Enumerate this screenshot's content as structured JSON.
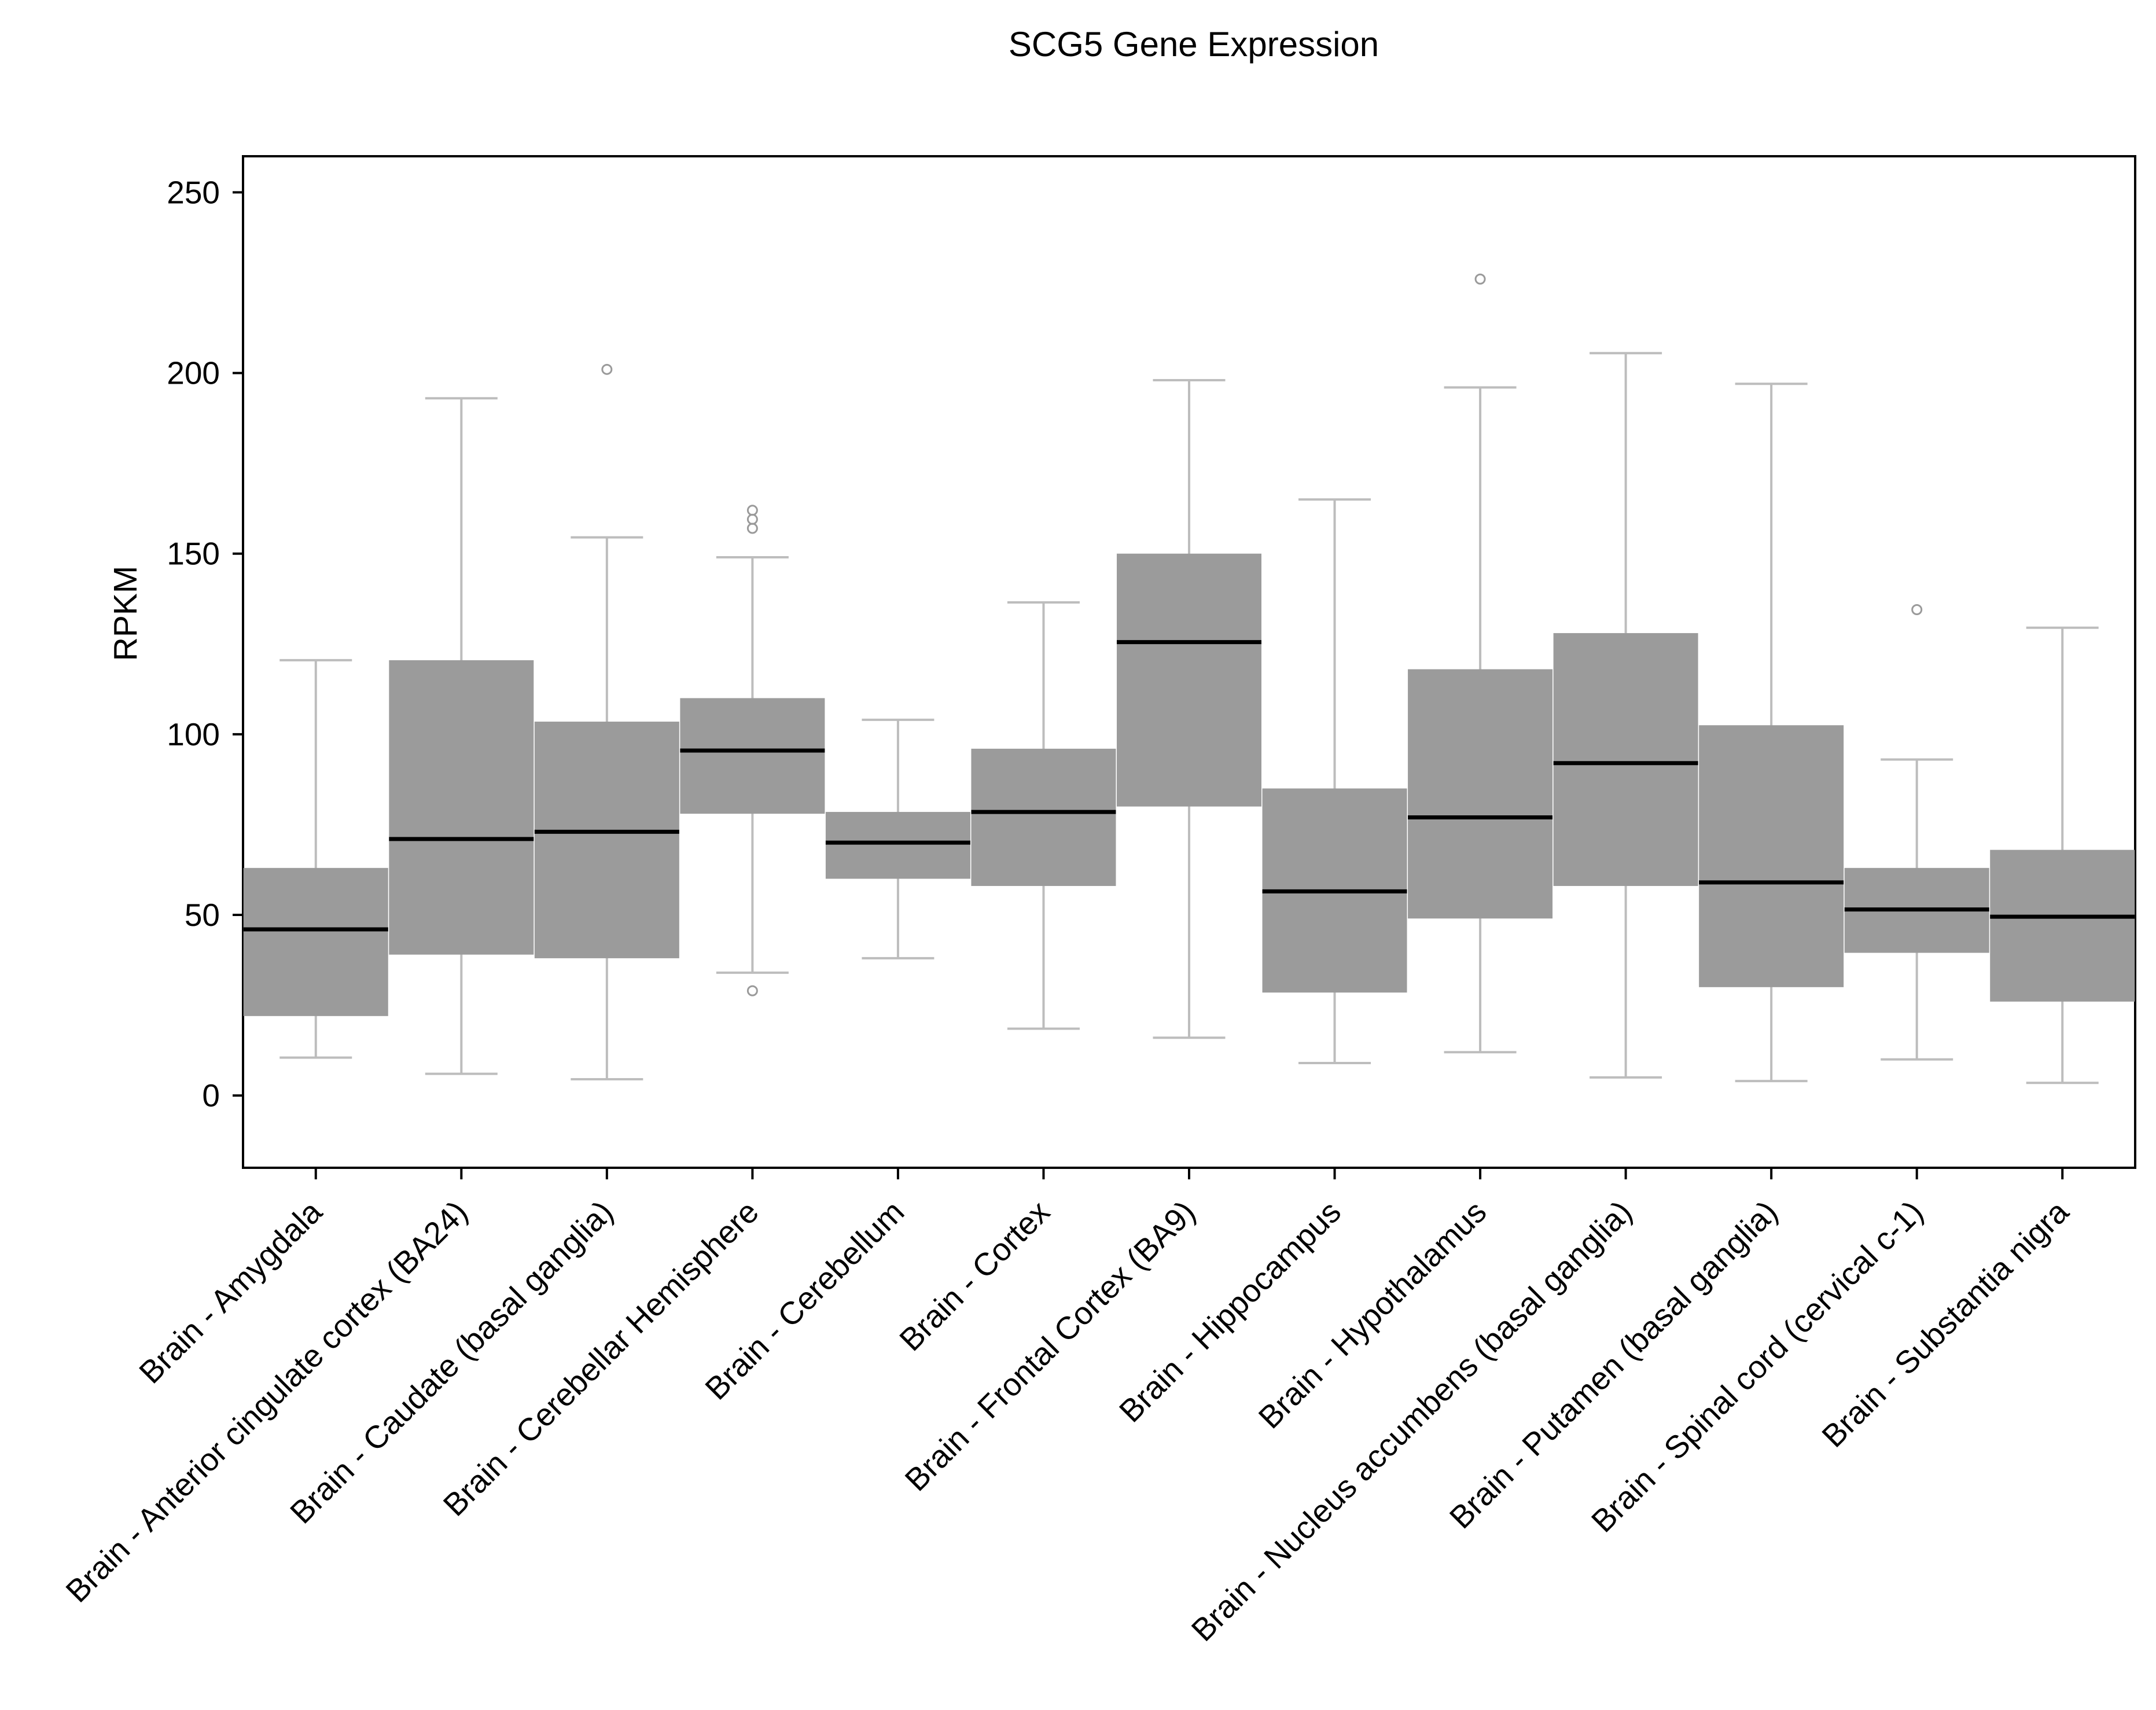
{
  "chart_data": {
    "type": "boxplot",
    "title": "SCG5 Gene Expression",
    "xlabel": "",
    "ylabel": "RPKM",
    "ylim": [
      -20,
      260
    ],
    "yticks": [
      0,
      50,
      100,
      150,
      200,
      250
    ],
    "grid": false,
    "legend": "none",
    "colors": {
      "box_fill": "#9b9b9b",
      "median": "#000000",
      "whisker": "#bdbdbd",
      "outlier": "#9a9a9a",
      "axis": "#000000"
    },
    "categories": [
      "Brain - Amygdala",
      "Brain - Anterior cingulate cortex (BA24)",
      "Brain - Caudate (basal ganglia)",
      "Brain - Cerebellar Hemisphere",
      "Brain - Cerebellum",
      "Brain - Cortex",
      "Brain - Frontal Cortex (BA9)",
      "Brain - Hippocampus",
      "Brain - Hypothalamus",
      "Brain - Nucleus accumbens (basal ganglia)",
      "Brain - Putamen (basal ganglia)",
      "Brain - Spinal cord (cervical c-1)",
      "Brain - Substantia nigra"
    ],
    "boxes": [
      {
        "whisker_low": 10.5,
        "q1": 22,
        "median": 46,
        "q3": 63,
        "whisker_high": 120.5,
        "outliers": []
      },
      {
        "whisker_low": 6,
        "q1": 39,
        "median": 71,
        "q3": 120.5,
        "whisker_high": 193,
        "outliers": []
      },
      {
        "whisker_low": 4.5,
        "q1": 38,
        "median": 73,
        "q3": 103.5,
        "whisker_high": 154.5,
        "outliers": [
          201
        ]
      },
      {
        "whisker_low": 34,
        "q1": 78,
        "median": 95.5,
        "q3": 110,
        "whisker_high": 149,
        "outliers": [
          29,
          157,
          159.5,
          162
        ]
      },
      {
        "whisker_low": 38,
        "q1": 60,
        "median": 70,
        "q3": 78.5,
        "whisker_high": 104,
        "outliers": []
      },
      {
        "whisker_low": 18.5,
        "q1": 58,
        "median": 78.5,
        "q3": 96,
        "whisker_high": 136.5,
        "outliers": []
      },
      {
        "whisker_low": 16,
        "q1": 80,
        "median": 125.5,
        "q3": 150,
        "whisker_high": 198,
        "outliers": []
      },
      {
        "whisker_low": 9,
        "q1": 28.5,
        "median": 56.5,
        "q3": 85,
        "whisker_high": 165,
        "outliers": []
      },
      {
        "whisker_low": 12,
        "q1": 49,
        "median": 77,
        "q3": 118,
        "whisker_high": 196,
        "outliers": [
          226
        ]
      },
      {
        "whisker_low": 5,
        "q1": 58,
        "median": 92,
        "q3": 128,
        "whisker_high": 205.5,
        "outliers": []
      },
      {
        "whisker_low": 4,
        "q1": 30,
        "median": 59,
        "q3": 102.5,
        "whisker_high": 197,
        "outliers": []
      },
      {
        "whisker_low": 10,
        "q1": 39.5,
        "median": 51.5,
        "q3": 63,
        "whisker_high": 93,
        "outliers": [
          134.5
        ]
      },
      {
        "whisker_low": 3.5,
        "q1": 26,
        "median": 49.5,
        "q3": 68,
        "whisker_high": 129.5,
        "outliers": []
      }
    ]
  }
}
